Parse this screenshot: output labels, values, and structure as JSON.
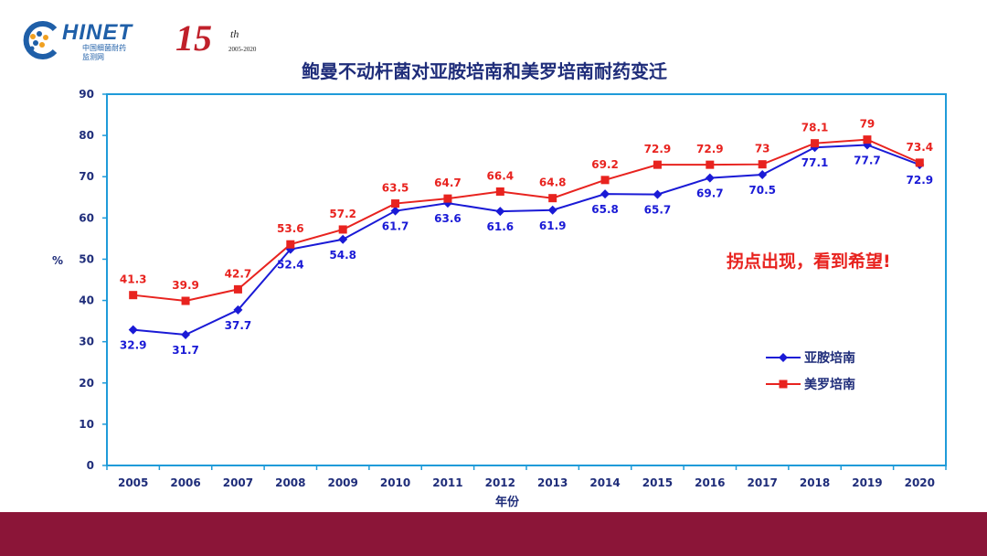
{
  "header": {
    "logo_text": "HINET",
    "logo_sub_1": "中国细菌耐药",
    "logo_sub_2": "监测网",
    "anniversary_number": "15",
    "anniversary_suffix": "th",
    "anniversary_years": "2005-2020"
  },
  "chart_data": {
    "type": "line",
    "title": "鲍曼不动杆菌对亚胺培南和美罗培南耐药变迁",
    "xlabel": "年份",
    "ylabel": "%",
    "ylim": [
      0,
      90
    ],
    "yticks": [
      0,
      10,
      20,
      30,
      40,
      50,
      60,
      70,
      80,
      90
    ],
    "grid": false,
    "legend_position": "right",
    "categories": [
      "2005",
      "2006",
      "2007",
      "2008",
      "2009",
      "2010",
      "2011",
      "2012",
      "2013",
      "2014",
      "2015",
      "2016",
      "2017",
      "2018",
      "2019",
      "2020"
    ],
    "series": [
      {
        "name": "亚胺培南",
        "color": "#1a1ad6",
        "marker": "diamond",
        "label_position": "below",
        "values": [
          32.9,
          31.7,
          37.7,
          52.4,
          54.8,
          61.7,
          63.6,
          61.6,
          61.9,
          65.8,
          65.7,
          69.7,
          70.5,
          77.1,
          77.7,
          72.9
        ],
        "labels": [
          "32.9",
          "31.7",
          "37.7",
          "52.4",
          "54.8",
          "61.7",
          "63.6",
          "61.6",
          "61.9",
          "65.8",
          "65.7",
          "69.7",
          "70.5",
          "77.1",
          "77.7",
          "72.9"
        ]
      },
      {
        "name": "美罗培南",
        "color": "#e8231f",
        "marker": "square",
        "label_position": "above",
        "values": [
          41.3,
          39.9,
          42.7,
          53.6,
          57.2,
          63.5,
          64.7,
          66.4,
          64.8,
          69.2,
          72.9,
          72.9,
          73,
          78.1,
          79,
          73.4
        ],
        "labels": [
          "41.3",
          "39.9",
          "42.7",
          "53.6",
          "57.2",
          "63.5",
          "64.7",
          "66.4",
          "64.8",
          "69.2",
          "72.9",
          "72.9",
          "73",
          "78.1",
          "79",
          "73.4"
        ]
      }
    ],
    "annotations": [
      "拐点出现，看到希望!"
    ]
  },
  "colors": {
    "title": "#1f2d7a",
    "frame": "#1f9bd9",
    "axis_text": "#1f2d7a",
    "annotation": "#e8231f",
    "bottom_band": "#8b1538",
    "logo": "#1f5fa8",
    "anniversary": "#c0202a"
  }
}
